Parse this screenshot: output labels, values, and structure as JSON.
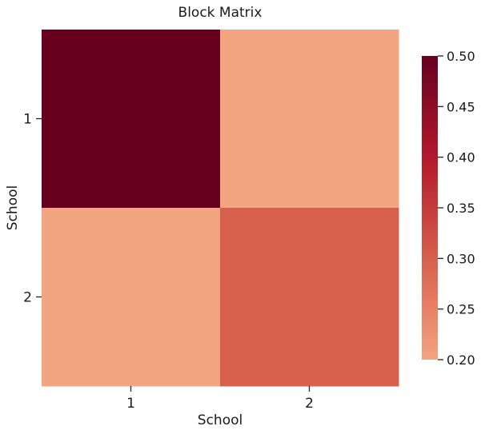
{
  "chart_data": {
    "type": "heatmap",
    "title": "Block Matrix",
    "xlabel": "School",
    "ylabel": "School",
    "x_categories": [
      "1",
      "2"
    ],
    "y_categories": [
      "1",
      "2"
    ],
    "values": [
      [
        0.5,
        0.2
      ],
      [
        0.2,
        0.3
      ]
    ],
    "colorbar": {
      "vmin": 0.2,
      "vmax": 0.5,
      "ticks": [
        0.2,
        0.25,
        0.3,
        0.35,
        0.4,
        0.45,
        0.5
      ],
      "tick_labels": [
        "0.20",
        "0.25",
        "0.30",
        "0.35",
        "0.40",
        "0.45",
        "0.50"
      ],
      "colormap": [
        "#f3a481",
        "#e88066",
        "#d6604d",
        "#c43c3c",
        "#b2182b",
        "#8c0d25",
        "#67001f"
      ]
    },
    "grid": false
  }
}
